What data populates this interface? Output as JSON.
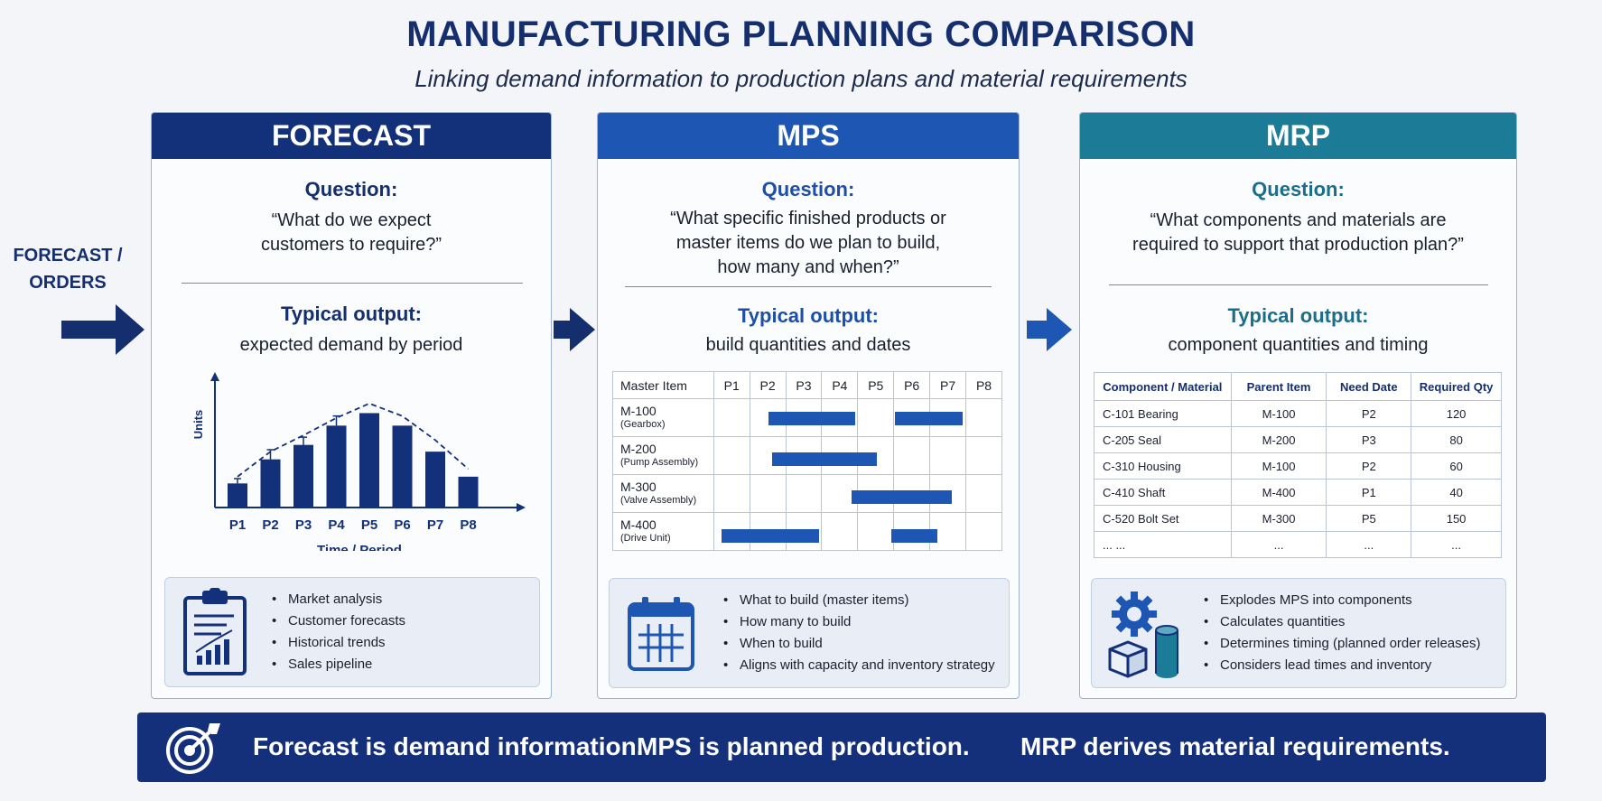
{
  "title": "MANUFACTURING PLANNING COMPARISON",
  "subtitle": "Linking demand information to production plans and material requirements",
  "input_label_line1": "FORECAST /",
  "input_label_line2": "ORDERS",
  "colors": {
    "forecast": "#13307a",
    "mps": "#1e56b4",
    "mrp": "#1c7b97",
    "footer": "#15307a"
  },
  "forecast": {
    "header": "FORECAST",
    "question_label": "Question:",
    "question_line1": "“What do we expect",
    "question_line2": "customers to require?”",
    "output_label": "Typical output:",
    "output_text": "expected demand by period",
    "chart_data": {
      "type": "bar",
      "categories": [
        "P1",
        "P2",
        "P3",
        "P4",
        "P5",
        "P6",
        "P7",
        "P8"
      ],
      "values": [
        2.5,
        5,
        6.5,
        8.5,
        9.8,
        8.5,
        5.8,
        3.2
      ],
      "trend": [
        3.2,
        5.8,
        7.5,
        9.3,
        10.8,
        9.5,
        7,
        4
      ],
      "error_bar_top": [
        3,
        6,
        7.3,
        9.5,
        9.8,
        8.5,
        5.8,
        3.2
      ],
      "xlabel": "Time / Period",
      "ylabel": "Units",
      "ylim": [
        0,
        12
      ],
      "grid": false
    },
    "icon": "clipboard-chart-icon",
    "bullets": [
      "Market analysis",
      "Customer forecasts",
      "Historical trends",
      "Sales pipeline"
    ]
  },
  "mps": {
    "header": "MPS",
    "question_label": "Question:",
    "question_line1": "“What specific finished products or",
    "question_line2": "master items do we plan to build,",
    "question_line3": "how many and when?”",
    "output_label": "Typical output:",
    "output_text": "build quantities and dates",
    "table_header": [
      "Master Item",
      "P1",
      "P2",
      "P3",
      "P4",
      "P5",
      "P6",
      "P7",
      "P8"
    ],
    "rows": [
      {
        "item": "M-100",
        "sub": "(Gearbox)",
        "bars": [
          [
            1.5,
            3.9
          ],
          [
            5.0,
            6.9
          ]
        ]
      },
      {
        "item": "M-200",
        "sub": "(Pump Assembly)",
        "bars": [
          [
            1.6,
            4.5
          ]
        ]
      },
      {
        "item": "M-300",
        "sub": "(Valve Assembly)",
        "bars": [
          [
            3.8,
            6.6
          ]
        ]
      },
      {
        "item": "M-400",
        "sub": "(Drive Unit)",
        "bars": [
          [
            0.2,
            2.9
          ],
          [
            4.9,
            6.2
          ]
        ]
      }
    ],
    "icon": "calendar-icon",
    "bullets": [
      "What to build (master items)",
      "How many to build",
      "When to build",
      "Aligns with capacity and inventory strategy"
    ]
  },
  "mrp": {
    "header": "MRP",
    "question_label": "Question:",
    "question_line1": "“What components and materials are",
    "question_line2": "required to support that production plan?”",
    "output_label": "Typical output:",
    "output_text": "component quantities and timing",
    "table_header": [
      "Component / Material",
      "Parent Item",
      "Need Date",
      "Required Qty"
    ],
    "rows": [
      [
        "C-101 Bearing",
        "M-100",
        "P2",
        "120"
      ],
      [
        "C-205 Seal",
        "M-200",
        "P3",
        "80"
      ],
      [
        "C-310 Housing",
        "M-100",
        "P2",
        "60"
      ],
      [
        "C-410 Shaft",
        "M-400",
        "P1",
        "40"
      ],
      [
        "C-520 Bolt Set",
        "M-300",
        "P5",
        "150"
      ],
      [
        "...        ...",
        "...",
        "...",
        "..."
      ]
    ],
    "icons": [
      "gear-icon",
      "box-icon",
      "cylinder-icon"
    ],
    "bullets": [
      "Explodes MPS into components",
      "Calculates quantities",
      "Determines timing (planned order releases)",
      "Considers lead times and inventory"
    ]
  },
  "footer": {
    "icon": "target-icon",
    "msg1": "Forecast is demand information.",
    "msg2": "MPS is planned production.",
    "msg3": "MRP derives material requirements."
  }
}
